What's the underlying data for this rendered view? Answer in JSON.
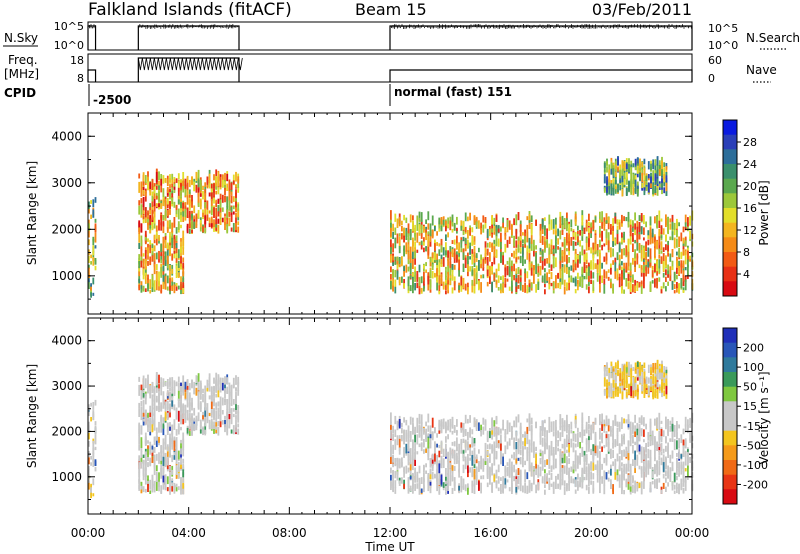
{
  "header": {
    "station": "Falkland Islands (fitACF)",
    "beam": "Beam 15",
    "date": "03/Feb/2011"
  },
  "params": {
    "nsky_label": "N.Sky",
    "nsky_ticks": [
      "10^5",
      "10^0"
    ],
    "nsearch_label": "N.Search",
    "nsearch_ticks": [
      "10^5",
      "10^0"
    ],
    "freq_label": "Freq.",
    "freq_unit": "[MHz]",
    "freq_ticks": [
      "18",
      "8"
    ],
    "nave_label": "Nave",
    "nave_ticks": [
      "60",
      "0"
    ],
    "cpid_label": "CPID",
    "cpid_segments": [
      {
        "start_hour": 0,
        "label": "-2500"
      },
      {
        "start_hour": 12,
        "label": "normal (fast) 151"
      }
    ]
  },
  "colorbars": {
    "power": {
      "title": "Power [dB]",
      "ticks": [
        "28",
        "24",
        "20",
        "16",
        "12",
        "8",
        "4"
      ],
      "colors": [
        "#0a1adf",
        "#2a3fb8",
        "#2d6e9a",
        "#3a8f6c",
        "#5aa84e",
        "#9cc83a",
        "#e2de2a",
        "#f3b51f",
        "#f58b17",
        "#f25a14",
        "#e83015",
        "#d80a12"
      ]
    },
    "velocity": {
      "title": "Velocity [m s⁻¹]",
      "ticks": [
        "200",
        "100",
        "50",
        "15",
        "-15",
        "-50",
        "-100",
        "-200"
      ],
      "colors": [
        "#1f2fb8",
        "#2856b8",
        "#2f7a9c",
        "#3a9a5a",
        "#7fc840",
        "#c8c8c8",
        "#c8c8c8",
        "#f3c51f",
        "#f59a1a",
        "#f06a16",
        "#e83515",
        "#d80a12"
      ]
    }
  },
  "axes": {
    "x_ticks": [
      "00:00",
      "04:00",
      "08:00",
      "12:00",
      "16:00",
      "20:00",
      "00:00"
    ],
    "x_label": "Time UT",
    "y_label": "Slant Range [km]",
    "y_ticks": [
      "4000",
      "3000",
      "2000",
      "1000"
    ]
  },
  "chart_data": {
    "type": "heatmap",
    "x_range_hours": [
      0,
      24
    ],
    "y_range_km": [
      180,
      4500
    ],
    "panels": [
      {
        "quantity": "Power",
        "unit": "dB",
        "scale": [
          0,
          30
        ]
      },
      {
        "quantity": "Velocity",
        "unit": "m s^-1",
        "scale": [
          -200,
          200
        ]
      }
    ],
    "echo_regions": [
      {
        "t_start": 0.0,
        "t_end": 0.3,
        "range_km": [
          500,
          2600
        ],
        "power_db": 14,
        "velocity": -20
      },
      {
        "t_start": 2.0,
        "t_end": 3.8,
        "range_km": [
          600,
          1800
        ],
        "power_db": 18,
        "velocity": 10
      },
      {
        "t_start": 2.0,
        "t_end": 6.0,
        "range_km": [
          1900,
          3100
        ],
        "power_db": 20,
        "velocity": 0
      },
      {
        "t_start": 12.0,
        "t_end": 24.0,
        "range_km": [
          600,
          2200
        ],
        "power_db": 18,
        "velocity": 0
      },
      {
        "t_start": 20.5,
        "t_end": 23.0,
        "range_km": [
          2700,
          3400
        ],
        "power_db": 12,
        "velocity": -40
      }
    ],
    "data_gap_hours": [
      [
        6.0,
        12.0
      ]
    ]
  }
}
